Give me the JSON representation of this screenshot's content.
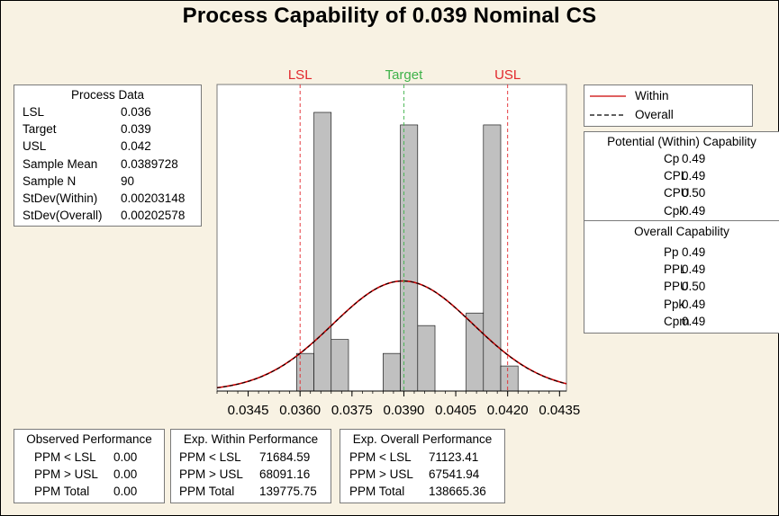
{
  "title": "Process Capability of 0.039 Nominal CS",
  "process_data": {
    "header": "Process Data",
    "rows": [
      {
        "label": "LSL",
        "value": "0.036"
      },
      {
        "label": "Target",
        "value": "0.039"
      },
      {
        "label": "USL",
        "value": "0.042"
      },
      {
        "label": "Sample Mean",
        "value": "0.0389728"
      },
      {
        "label": "Sample N",
        "value": "90"
      },
      {
        "label": "StDev(Within)",
        "value": "0.00203148"
      },
      {
        "label": "StDev(Overall)",
        "value": "0.00202578"
      }
    ]
  },
  "legend": {
    "within": "Within",
    "overall": "Overall"
  },
  "potential_capability": {
    "header": "Potential (Within) Capability",
    "rows": [
      {
        "label": "Cp",
        "value": "0.49"
      },
      {
        "label": "CPL",
        "value": "0.49"
      },
      {
        "label": "CPU",
        "value": "0.50"
      },
      {
        "label": "Cpk",
        "value": "0.49"
      }
    ]
  },
  "overall_capability": {
    "header": "Overall Capability",
    "rows": [
      {
        "label": "Pp",
        "value": "0.49"
      },
      {
        "label": "PPL",
        "value": "0.49"
      },
      {
        "label": "PPU",
        "value": "0.50"
      },
      {
        "label": "Ppk",
        "value": "0.49"
      },
      {
        "label": "Cpm",
        "value": "0.49"
      }
    ]
  },
  "observed_performance": {
    "header": "Observed Performance",
    "rows": [
      {
        "label": "PPM < LSL",
        "value": "0.00"
      },
      {
        "label": "PPM > USL",
        "value": "0.00"
      },
      {
        "label": "PPM Total",
        "value": "0.00"
      }
    ]
  },
  "within_performance": {
    "header": "Exp. Within Performance",
    "rows": [
      {
        "label": "PPM < LSL",
        "value": "71684.59"
      },
      {
        "label": "PPM > USL",
        "value": "68091.16"
      },
      {
        "label": "PPM Total",
        "value": "139775.75"
      }
    ]
  },
  "overall_performance": {
    "header": "Exp. Overall Performance",
    "rows": [
      {
        "label": "PPM < LSL",
        "value": "71123.41"
      },
      {
        "label": "PPM > USL",
        "value": "67541.94"
      },
      {
        "label": "PPM Total",
        "value": "138665.36"
      }
    ]
  },
  "colors": {
    "background": "#f8f2e3",
    "bar_fill": "#c0c0c0",
    "spec_line": "#e2262b",
    "target_line": "#3fb24a",
    "within_curve": "#cc0000",
    "overall_curve": "#000000"
  },
  "chart_data": {
    "type": "bar",
    "subtype": "histogram",
    "xlim": [
      0.0336,
      0.0437
    ],
    "ylim": [
      0,
      22
    ],
    "xticks": [
      "0.0345",
      "0.0360",
      "0.0375",
      "0.0390",
      "0.0405",
      "0.0420",
      "0.0435"
    ],
    "xtick_values": [
      0.0345,
      0.036,
      0.0375,
      0.039,
      0.0405,
      0.042,
      0.0435
    ],
    "bin_width": 0.0005,
    "bins": [
      {
        "start": 0.0359,
        "count": 2.7
      },
      {
        "start": 0.0364,
        "count": 20.0
      },
      {
        "start": 0.0369,
        "count": 3.7
      },
      {
        "start": 0.0384,
        "count": 2.7
      },
      {
        "start": 0.0389,
        "count": 19.1
      },
      {
        "start": 0.0394,
        "count": 4.7
      },
      {
        "start": 0.0408,
        "count": 5.6
      },
      {
        "start": 0.0413,
        "count": 19.1
      },
      {
        "start": 0.0418,
        "count": 1.8
      }
    ],
    "spec_lines": [
      {
        "label": "LSL",
        "value": 0.036
      },
      {
        "label": "Target",
        "value": 0.039
      },
      {
        "label": "USL",
        "value": 0.042
      }
    ],
    "curves": [
      {
        "name": "Within",
        "mean": 0.0389728,
        "sd": 0.00203148
      },
      {
        "name": "Overall",
        "mean": 0.0389728,
        "sd": 0.00202578
      }
    ],
    "curve_peak": 7.9,
    "legend_position": "right",
    "grid": false
  }
}
